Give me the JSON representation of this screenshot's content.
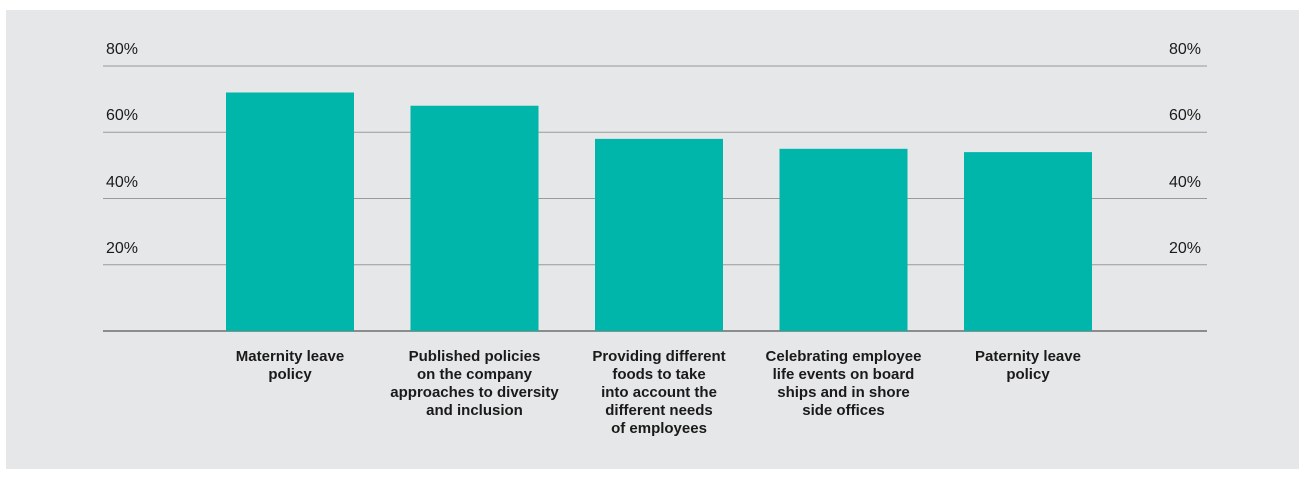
{
  "chart_data": {
    "type": "bar",
    "categories": [
      [
        "Maternity leave",
        "policy"
      ],
      [
        "Published policies",
        "on the company",
        "approaches to diversity",
        "and inclusion"
      ],
      [
        "Providing different",
        "foods to take",
        "into account the",
        "different needs",
        "of employees"
      ],
      [
        "Celebrating employee",
        "life events on board",
        "ships and in shore",
        "side offices"
      ],
      [
        "Paternity leave",
        "policy"
      ]
    ],
    "values": [
      72,
      68,
      58,
      55,
      54
    ],
    "ylim": [
      0,
      80
    ],
    "yticks": [
      {
        "value": 80,
        "label": "80%"
      },
      {
        "value": 60,
        "label": "60%"
      },
      {
        "value": 40,
        "label": "40%"
      },
      {
        "value": 20,
        "label": "20%"
      }
    ],
    "title": "",
    "xlabel": "",
    "ylabel": "",
    "grid": true,
    "bar_color": "#00b5a9",
    "gridline_color": "#9a9a9a",
    "background_color": "#e6e7e8"
  }
}
